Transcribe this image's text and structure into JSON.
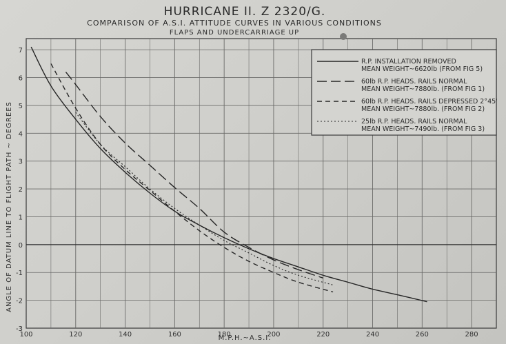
{
  "chart_data": {
    "type": "line",
    "title": "HURRICANE II. Z 2320/G.",
    "subtitle": "COMPARISON OF A.S.I. ATTITUDE CURVES IN VARIOUS CONDITIONS",
    "subtitle2": "FLAPS AND UNDERCARRIAGE UP",
    "xlabel": "M.P.H.~A.S.I.",
    "ylabel": "ANGLE OF DATUM LINE TO FLIGHT PATH ~ DEGREES",
    "xlim": [
      100,
      290
    ],
    "ylim": [
      -3,
      7.4
    ],
    "x_ticks": [
      "100",
      "120",
      "140",
      "160",
      "180",
      "200",
      "220",
      "240",
      "260",
      "280"
    ],
    "y_ticks": [
      "-3",
      "-2",
      "-1",
      "0",
      "1",
      "2",
      "3",
      "4",
      "5",
      "6",
      "7"
    ],
    "grid": true,
    "legend_position": "top-right",
    "series": [
      {
        "name": "R.P. INSTALLATION REMOVED",
        "note": "MEAN WEIGHT~6620lb (FROM FIG 5)",
        "style": "solid",
        "x": [
          102,
          110,
          120,
          130,
          140,
          150,
          160,
          170,
          180,
          190,
          200,
          210,
          220,
          230,
          240,
          250,
          262
        ],
        "y": [
          7.1,
          5.7,
          4.5,
          3.45,
          2.6,
          1.85,
          1.2,
          0.7,
          0.25,
          -0.15,
          -0.5,
          -0.8,
          -1.1,
          -1.35,
          -1.6,
          -1.8,
          -2.05
        ]
      },
      {
        "name": "60lb R.P. HEADS. RAILS NORMAL",
        "note": "MEAN WEIGHT~7880lb. (FROM FIG 1)",
        "style": "longdash",
        "x": [
          116,
          120,
          130,
          140,
          150,
          160,
          170,
          180,
          190,
          200,
          210,
          220
        ],
        "y": [
          6.2,
          5.75,
          4.6,
          3.65,
          2.85,
          2.05,
          1.3,
          0.45,
          -0.1,
          -0.55,
          -0.9,
          -1.2
        ]
      },
      {
        "name": "60lb R.P. HEADS. RAILS DEPRESSED 2°45'",
        "note": "MEAN WEIGHT~7880lb. (FROM FIG 2)",
        "style": "dashed",
        "x": [
          110,
          120,
          130,
          140,
          150,
          160,
          170,
          180,
          190,
          200,
          210,
          224
        ],
        "y": [
          6.5,
          4.9,
          3.6,
          2.7,
          1.95,
          1.2,
          0.5,
          -0.1,
          -0.6,
          -1.0,
          -1.35,
          -1.7
        ]
      },
      {
        "name": "25lb R.P. HEADS. RAILS NORMAL",
        "note": "MEAN WEIGHT~7490lb. (FROM FIG 3)",
        "style": "dotted",
        "x": [
          120,
          130,
          140,
          150,
          160,
          170,
          180,
          190,
          200,
          210,
          224
        ],
        "y": [
          4.75,
          3.6,
          2.8,
          2.0,
          1.3,
          0.7,
          0.15,
          -0.3,
          -0.75,
          -1.1,
          -1.45
        ]
      }
    ]
  }
}
